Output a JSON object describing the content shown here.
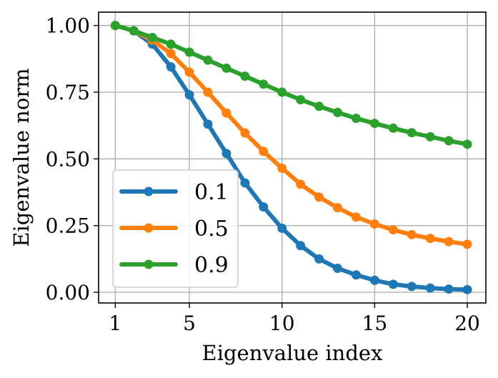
{
  "chart_data": {
    "type": "line",
    "title": "",
    "xlabel": "Eigenvalue index",
    "ylabel": "Eigenvalue norm",
    "x": [
      1,
      2,
      3,
      4,
      5,
      6,
      7,
      8,
      9,
      10,
      11,
      12,
      13,
      14,
      15,
      16,
      17,
      18,
      19,
      20
    ],
    "xlim": [
      0.1,
      21.0
    ],
    "ylim": [
      -0.04,
      1.05
    ],
    "xticks": [
      1,
      5,
      10,
      15,
      20
    ],
    "xtick_labels": [
      "1",
      "5",
      "10",
      "15",
      "20"
    ],
    "yticks": [
      0,
      0.25,
      0.5,
      0.75,
      1.0
    ],
    "ytick_labels": [
      "0.00",
      "0.25",
      "0.50",
      "0.75",
      "1.00"
    ],
    "grid": true,
    "legend_position": "lower-left",
    "series": [
      {
        "name": "0.1",
        "color": "#1f77b4",
        "values": [
          1.0,
          0.98,
          0.93,
          0.845,
          0.74,
          0.63,
          0.52,
          0.41,
          0.32,
          0.24,
          0.175,
          0.125,
          0.09,
          0.065,
          0.045,
          0.03,
          0.022,
          0.016,
          0.012,
          0.01
        ]
      },
      {
        "name": "0.5",
        "color": "#ff7f0e",
        "values": [
          1.0,
          0.98,
          0.945,
          0.895,
          0.825,
          0.75,
          0.672,
          0.597,
          0.528,
          0.465,
          0.405,
          0.357,
          0.317,
          0.282,
          0.256,
          0.234,
          0.216,
          0.202,
          0.19,
          0.18
        ]
      },
      {
        "name": "0.9",
        "color": "#2ca02c",
        "values": [
          1.0,
          0.98,
          0.955,
          0.93,
          0.9,
          0.87,
          0.84,
          0.81,
          0.78,
          0.75,
          0.722,
          0.697,
          0.674,
          0.652,
          0.633,
          0.615,
          0.598,
          0.583,
          0.568,
          0.555
        ]
      }
    ]
  }
}
